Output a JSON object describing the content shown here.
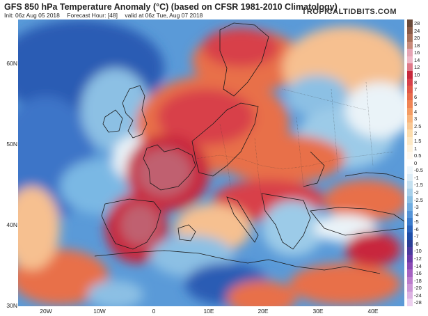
{
  "header": {
    "title": "GFS 850 hPa Temperature Anomaly (°C) (based on CFSR 1981-2010 Climatology)",
    "init": "Init: 06z Aug 05 2018",
    "forecast_hour": "Forecast Hour: [48]",
    "valid": "valid at 06z Tue, Aug 07 2018",
    "watermark": "TROPICALTIDBITS.COM"
  },
  "axes": {
    "latitude_labels": [
      "60N",
      "50N",
      "40N",
      "30N"
    ],
    "longitude_labels": [
      "20W",
      "10W",
      "0",
      "10E",
      "20E",
      "30E",
      "40E"
    ]
  },
  "colorbar": {
    "labels": [
      "28",
      "24",
      "20",
      "18",
      "16",
      "14",
      "12",
      "10",
      "8",
      "7",
      "6",
      "5",
      "4",
      "3",
      "2.5",
      "2",
      "1.5",
      "1",
      "0.5",
      "0",
      "-0.5",
      "-1",
      "-1.5",
      "-2",
      "-2.5",
      "-3",
      "-4",
      "-5",
      "-6",
      "-7",
      "-8",
      "-10",
      "-12",
      "-14",
      "-16",
      "-18",
      "-20",
      "-24",
      "-28"
    ],
    "colors": [
      "#6b4a3a",
      "#8a5a46",
      "#a8705a",
      "#c88a7a",
      "#e6a4b4",
      "#f0b8c8",
      "#e07a8a",
      "#c8283c",
      "#d8404a",
      "#e05848",
      "#e86c4c",
      "#f08454",
      "#f49c64",
      "#f8b47c",
      "#fac894",
      "#fcdcac",
      "#fde8c4",
      "#fef2dc",
      "#fff8ee",
      "#ffffff",
      "#eef6fb",
      "#dcecf6",
      "#c4e0f0",
      "#a8d0ea",
      "#8cc0e4",
      "#70ace0",
      "#5494d8",
      "#3c7ccc",
      "#2c64bc",
      "#1e4ea8",
      "#2a3e96",
      "#4a3a9e",
      "#6a3aa8",
      "#8a4ab4",
      "#a662c2",
      "#bc7ccc",
      "#cc96d6",
      "#dcb2e2",
      "#ecd0ee"
    ]
  },
  "map_colors": {
    "ocean_base": "#5a9ad8",
    "deep_cold": "#2a5cb4",
    "cool_light": "#9ccbe8",
    "neutral": "#eaf3f8",
    "warm_light": "#f6c090",
    "warm": "#e8704a",
    "hot": "#c8283c",
    "very_hot": "#c06070",
    "land_line": "#1a1a1a"
  }
}
